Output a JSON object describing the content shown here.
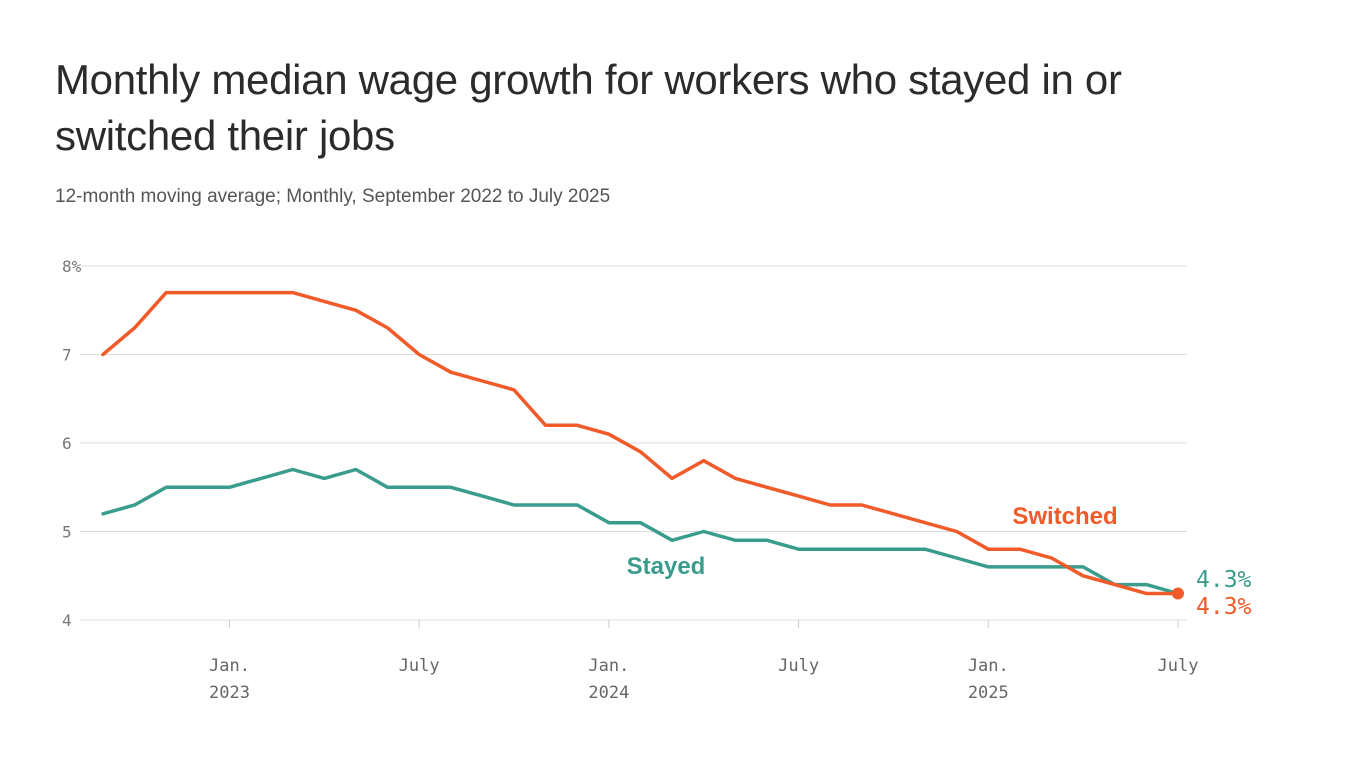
{
  "header": {
    "title": "Monthly median wage growth for workers who stayed in or switched their jobs",
    "subtitle": "12-month moving average; Monthly, September 2022 to July 2025"
  },
  "chart_data": {
    "type": "line",
    "x": [
      "2022-09",
      "2022-10",
      "2022-11",
      "2022-12",
      "2023-01",
      "2023-02",
      "2023-03",
      "2023-04",
      "2023-05",
      "2023-06",
      "2023-07",
      "2023-08",
      "2023-09",
      "2023-10",
      "2023-11",
      "2023-12",
      "2024-01",
      "2024-02",
      "2024-03",
      "2024-04",
      "2024-05",
      "2024-06",
      "2024-07",
      "2024-08",
      "2024-09",
      "2024-10",
      "2024-11",
      "2024-12",
      "2025-01",
      "2025-02",
      "2025-03",
      "2025-04",
      "2025-05",
      "2025-06",
      "2025-07"
    ],
    "series": [
      {
        "name": "Switched",
        "color": "#f15a29",
        "values": [
          7.0,
          7.3,
          7.7,
          7.7,
          7.7,
          7.7,
          7.7,
          7.6,
          7.5,
          7.3,
          7.0,
          6.8,
          6.7,
          6.6,
          6.2,
          6.2,
          6.1,
          5.9,
          5.6,
          5.8,
          5.6,
          5.5,
          5.4,
          5.3,
          5.3,
          5.2,
          5.1,
          5.0,
          4.8,
          4.8,
          4.7,
          4.5,
          4.4,
          4.3,
          4.3
        ]
      },
      {
        "name": "Stayed",
        "color": "#3a9c8c",
        "values": [
          5.2,
          5.3,
          5.5,
          5.5,
          5.5,
          5.6,
          5.7,
          5.6,
          5.7,
          5.5,
          5.5,
          5.5,
          5.4,
          5.3,
          5.3,
          5.3,
          5.1,
          5.1,
          4.9,
          5.0,
          4.9,
          4.9,
          4.8,
          4.8,
          4.8,
          4.8,
          4.8,
          4.7,
          4.6,
          4.6,
          4.6,
          4.6,
          4.4,
          4.4,
          4.3
        ]
      }
    ],
    "ylim": [
      4,
      8
    ],
    "y_ticks": [
      "8%",
      "7",
      "6",
      "5",
      "4"
    ],
    "x_ticks": [
      {
        "line1": "Jan.",
        "line2": "2023",
        "date": "2023-01"
      },
      {
        "line1": "July",
        "line2": "",
        "date": "2023-07"
      },
      {
        "line1": "Jan.",
        "line2": "2024",
        "date": "2024-01"
      },
      {
        "line1": "July",
        "line2": "",
        "date": "2024-07"
      },
      {
        "line1": "Jan.",
        "line2": "2025",
        "date": "2025-01"
      },
      {
        "line1": "July",
        "line2": "",
        "date": "2025-07"
      }
    ],
    "series_labels": {
      "switched": "Switched",
      "stayed": "Stayed"
    },
    "end_labels": {
      "stayed": "4.3%",
      "switched": "4.3%"
    },
    "grid": true,
    "legend": "inline"
  }
}
